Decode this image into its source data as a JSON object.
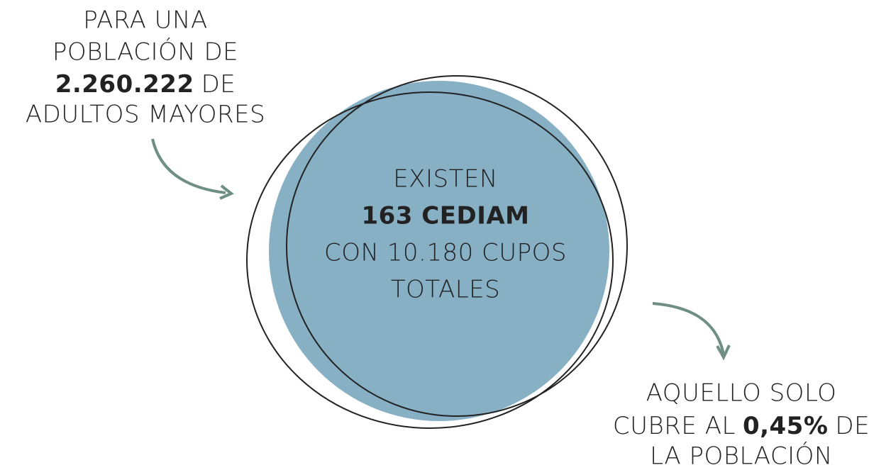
{
  "left_note": {
    "lines": [
      "PARA UNA",
      "POBLACIÓN DE"
    ],
    "figure": "2.260.222",
    "figure_suffix": "DE",
    "last_line": "ADULTOS MAYORES"
  },
  "center": {
    "intro": "EXISTEN",
    "figure": "163 CEDIAM",
    "lines": [
      "CON 10.180 CUPOS",
      "TOTALES"
    ]
  },
  "right_note": {
    "first_line": "AQUELLO SOLO",
    "prefix": "CUBRE AL",
    "figure": "0,45%",
    "suffix": "DE",
    "last_line": "LA POBLACIÓN"
  }
}
